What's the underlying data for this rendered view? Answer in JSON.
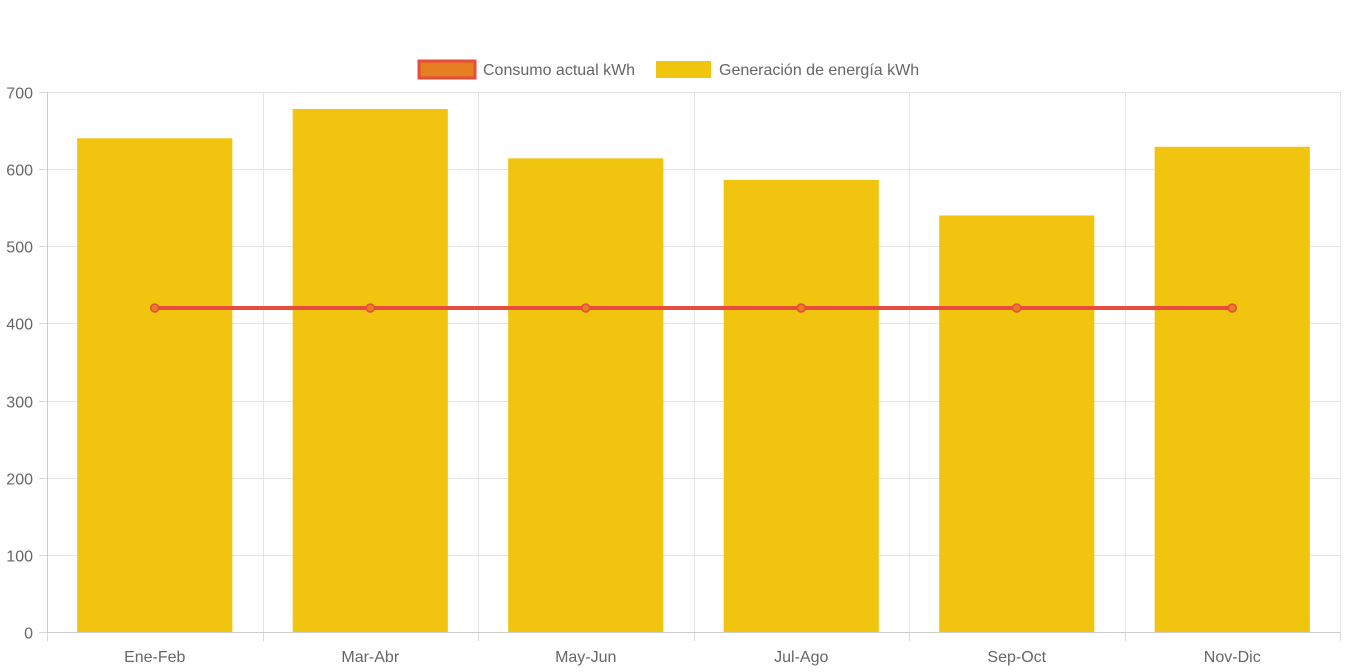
{
  "chart_data": {
    "type": "bar",
    "title": "",
    "xlabel": "",
    "ylabel": "",
    "categories": [
      "Ene-Feb",
      "Mar-Abr",
      "May-Jun",
      "Jul-Ago",
      "Sep-Oct",
      "Nov-Dic"
    ],
    "ylim": [
      0,
      700
    ],
    "yticks": [
      0,
      100,
      200,
      300,
      400,
      500,
      600,
      700
    ],
    "ytick_labels": [
      "0",
      "100",
      "200",
      "300",
      "400",
      "500",
      "600",
      "700"
    ],
    "grid": true,
    "legend_position": "top-center",
    "series": [
      {
        "name": "Consumo actual kWh",
        "type": "line",
        "values": [
          420,
          420,
          420,
          420,
          420,
          420
        ],
        "color": "#e74c3c",
        "point_color": "#e67e22"
      },
      {
        "name": "Generación de energía kWh",
        "type": "bar",
        "values": [
          640,
          678,
          614,
          586,
          540,
          629
        ],
        "color": "#f1c40f"
      }
    ]
  }
}
